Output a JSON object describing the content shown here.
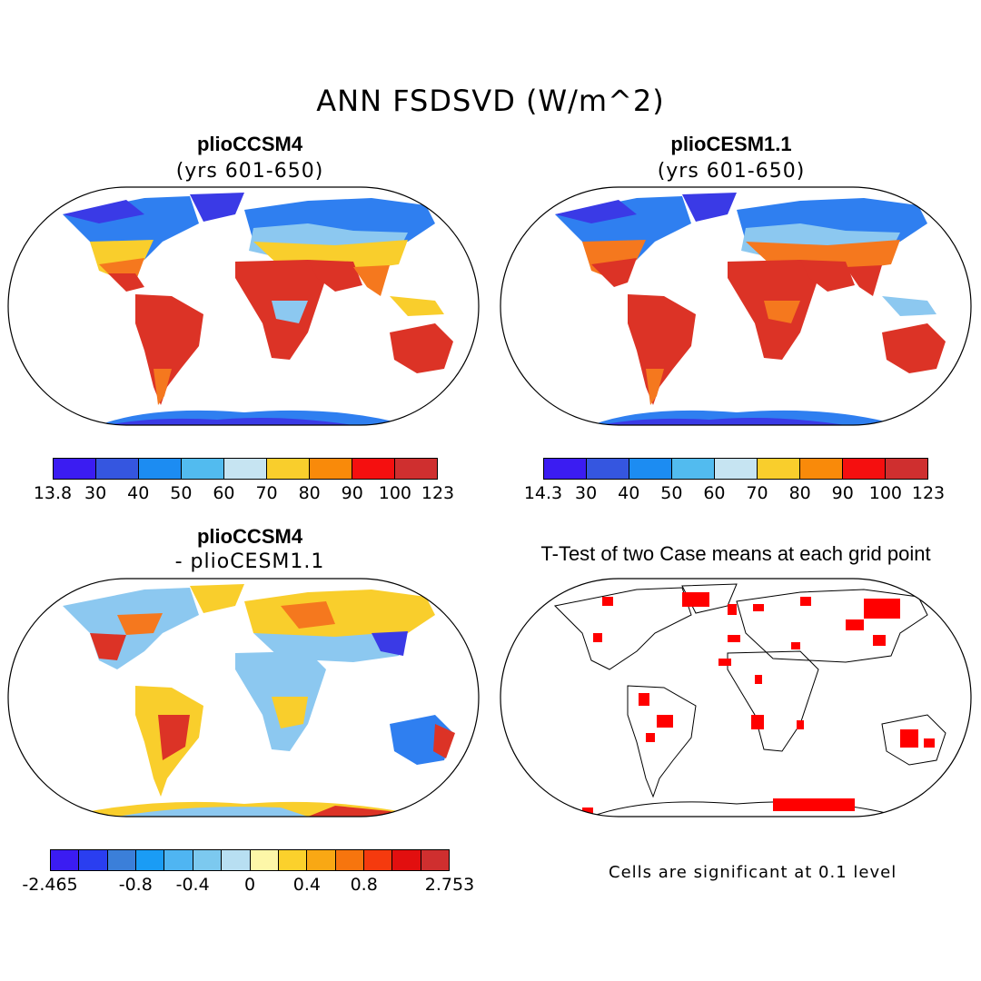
{
  "title": "ANN FSDSVD (W/m^2)",
  "panels": {
    "top_left": {
      "title": "plioCCSM4",
      "subtitle": "(yrs 601-650)"
    },
    "top_right": {
      "title": "plioCESM1.1",
      "subtitle": "(yrs 601-650)"
    },
    "bottom_left": {
      "title": "plioCCSM4",
      "subtitle": "- plioCESM1.1"
    },
    "bottom_right": {
      "title": "T-Test of two Case means at each grid point",
      "note": "Cells are significant at 0.1 level"
    }
  },
  "colorbars": {
    "top_left": {
      "labels": [
        "13.8",
        "30",
        "40",
        "50",
        "60",
        "70",
        "80",
        "90",
        "100",
        "123"
      ],
      "colors": [
        "#3b1cf2",
        "#3556e0",
        "#1c8cf2",
        "#52bbef",
        "#c6e4f2",
        "#f9ce2c",
        "#f98a0a",
        "#f50f0f",
        "#cf2f2f"
      ]
    },
    "top_right": {
      "labels": [
        "14.3",
        "30",
        "40",
        "50",
        "60",
        "70",
        "80",
        "90",
        "100",
        "123"
      ],
      "colors": [
        "#3b1cf2",
        "#3556e0",
        "#1c8cf2",
        "#52bbef",
        "#c6e4f2",
        "#f9ce2c",
        "#f98a0a",
        "#f50f0f",
        "#cf2f2f"
      ]
    },
    "bottom_left": {
      "labels": [
        "-2.465",
        "-0.8",
        "-0.4",
        "0",
        "0.4",
        "0.8",
        "2.753"
      ],
      "colors": [
        "#3b1cf2",
        "#2a3ef0",
        "#3b7fd9",
        "#1a9cf5",
        "#4fb5f2",
        "#7cc9ef",
        "#b8dff2",
        "#fdf7a8",
        "#fbd12c",
        "#f9a814",
        "#f7750e",
        "#f53a0e",
        "#e20f0f",
        "#cf2f2f"
      ]
    }
  },
  "colors": {
    "land_warm": "#dc3326",
    "land_orange": "#f5781e",
    "land_yellow": "#f9ce2c",
    "land_lightblue": "#8cc8f0",
    "land_blue": "#2f7ff0",
    "land_darkblue": "#3a3ae6",
    "signif": "#ff0000"
  }
}
